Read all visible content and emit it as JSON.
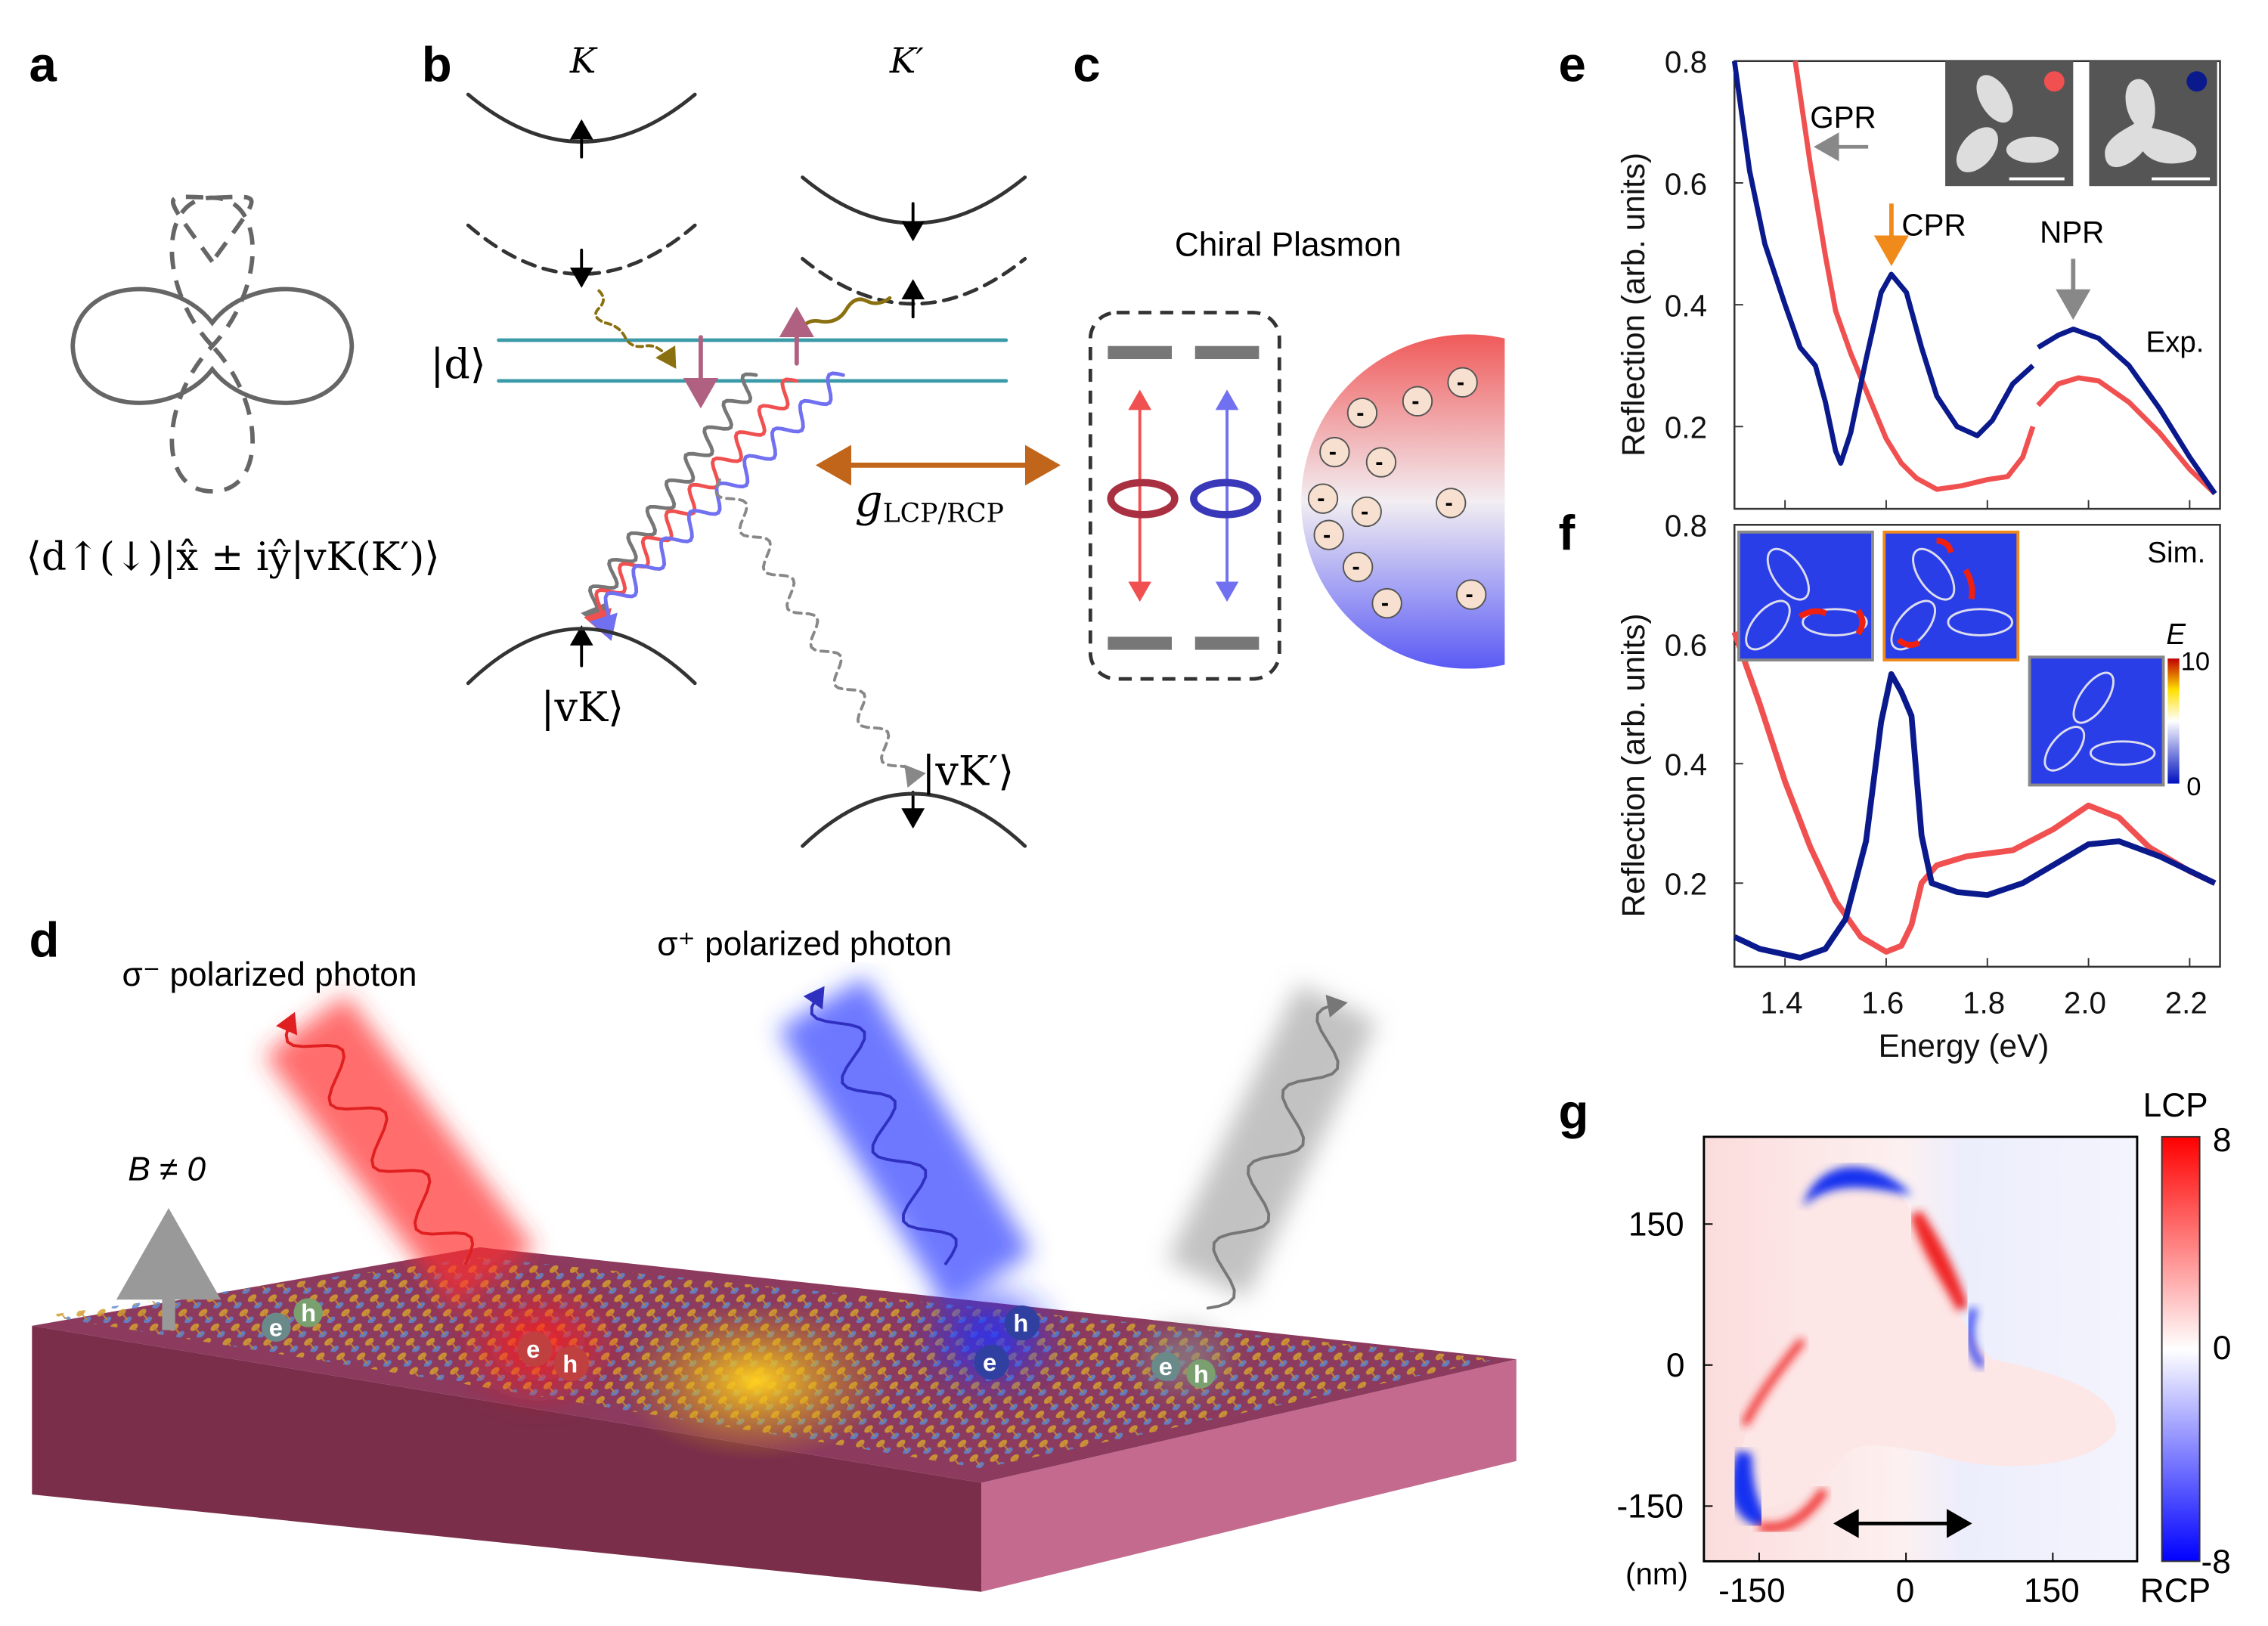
{
  "panel_labels": {
    "a": "a",
    "b": "b",
    "c": "c",
    "d": "d",
    "e": "e",
    "f": "f",
    "g": "g"
  },
  "panel_a": {
    "formula": "⟨d↑(↓)|x̂ ± iŷ|vK(K′)⟩"
  },
  "panel_b": {
    "valley_K": "K",
    "valley_Kp": "K′",
    "state_d": "|d⟩",
    "state_vK": "|vK⟩",
    "state_vKp": "|vK′⟩",
    "coupling_g": "g",
    "coupling_sub": "LCP/RCP"
  },
  "panel_c": {
    "title": "Chiral Plasmon",
    "charge": "-"
  },
  "panel_d": {
    "sigma_minus": "σ⁻ polarized photon",
    "sigma_plus": "σ⁺ polarized photon",
    "field": "B ≠ 0",
    "electron": "e",
    "hole": "h"
  },
  "colors": {
    "blue": "#0a1a8c",
    "red": "#f05050",
    "orange": "#f08a1a",
    "teal": "#3a9aa8",
    "coupling": "#c0651a"
  },
  "chart_data": [
    {
      "type": "line",
      "panel": "e",
      "xlabel": "Energy (eV)",
      "ylabel": "Reflection (arb. units)",
      "xlim": [
        1.3,
        2.26
      ],
      "ylim": [
        0.065,
        0.8
      ],
      "xticks": [
        1.4,
        1.6,
        1.8,
        2.0,
        2.2
      ],
      "yticks": [
        0.2,
        0.4,
        0.6,
        0.8
      ],
      "ytick_labels": [
        "0.2",
        "0.4",
        "0.6",
        "0.8"
      ],
      "annotations": {
        "gpr": "GPR",
        "cpr": "CPR",
        "npr": "NPR",
        "tag": "Exp."
      },
      "series": [
        {
          "name": "trimer-separated (red)",
          "color": "#f05050",
          "segments": [
            [
              [
                1.42,
                0.8
              ],
              [
                1.45,
                0.63
              ],
              [
                1.48,
                0.48
              ],
              [
                1.5,
                0.39
              ],
              [
                1.53,
                0.32
              ],
              [
                1.55,
                0.28
              ],
              [
                1.58,
                0.22
              ],
              [
                1.6,
                0.18
              ],
              [
                1.63,
                0.14
              ],
              [
                1.66,
                0.115
              ],
              [
                1.7,
                0.097
              ],
              [
                1.75,
                0.103
              ],
              [
                1.8,
                0.113
              ],
              [
                1.84,
                0.118
              ],
              [
                1.87,
                0.15
              ],
              [
                1.89,
                0.2
              ]
            ],
            [
              [
                1.9,
                0.235
              ],
              [
                1.94,
                0.27
              ],
              [
                1.98,
                0.28
              ],
              [
                2.02,
                0.275
              ],
              [
                2.08,
                0.24
              ],
              [
                2.14,
                0.19
              ],
              [
                2.2,
                0.13
              ],
              [
                2.25,
                0.09
              ]
            ]
          ]
        },
        {
          "name": "trimer-connected (blue)",
          "color": "#0a1a8c",
          "segments": [
            [
              [
                1.3,
                0.8
              ],
              [
                1.33,
                0.62
              ],
              [
                1.36,
                0.5
              ],
              [
                1.4,
                0.4
              ],
              [
                1.43,
                0.33
              ],
              [
                1.46,
                0.3
              ],
              [
                1.48,
                0.24
              ],
              [
                1.5,
                0.16
              ],
              [
                1.51,
                0.14
              ],
              [
                1.53,
                0.19
              ],
              [
                1.56,
                0.31
              ],
              [
                1.59,
                0.42
              ],
              [
                1.61,
                0.45
              ],
              [
                1.64,
                0.42
              ],
              [
                1.67,
                0.33
              ],
              [
                1.7,
                0.25
              ],
              [
                1.74,
                0.2
              ],
              [
                1.78,
                0.185
              ],
              [
                1.81,
                0.21
              ],
              [
                1.85,
                0.27
              ],
              [
                1.89,
                0.3
              ]
            ],
            [
              [
                1.9,
                0.33
              ],
              [
                1.94,
                0.35
              ],
              [
                1.97,
                0.36
              ],
              [
                2.02,
                0.345
              ],
              [
                2.08,
                0.3
              ],
              [
                2.14,
                0.23
              ],
              [
                2.2,
                0.15
              ],
              [
                2.25,
                0.09
              ]
            ]
          ]
        }
      ]
    },
    {
      "type": "line",
      "panel": "f",
      "xlabel": "Energy (eV)",
      "ylabel": "Reflection (arb. units)",
      "xlim": [
        1.3,
        2.26
      ],
      "ylim": [
        0.06,
        0.8
      ],
      "xticks": [
        1.4,
        1.6,
        1.8,
        2.0,
        2.2
      ],
      "xtick_labels": [
        "1.4",
        "1.6",
        "1.8",
        "2.0",
        "2.2"
      ],
      "yticks": [
        0.2,
        0.4,
        0.6,
        0.8
      ],
      "ytick_labels": [
        "0.2",
        "0.4",
        "0.6",
        "0.8"
      ],
      "annotations": {
        "tag": "Sim.",
        "cbar_label": "E",
        "cbar_max": "10",
        "cbar_min": "0"
      },
      "series": [
        {
          "name": "trimer-separated (red)",
          "color": "#f05050",
          "segments": [
            [
              [
                1.3,
                0.62
              ],
              [
                1.35,
                0.5
              ],
              [
                1.4,
                0.37
              ],
              [
                1.45,
                0.26
              ],
              [
                1.5,
                0.17
              ],
              [
                1.55,
                0.11
              ],
              [
                1.6,
                0.085
              ],
              [
                1.63,
                0.095
              ],
              [
                1.65,
                0.13
              ],
              [
                1.67,
                0.2
              ],
              [
                1.7,
                0.23
              ],
              [
                1.76,
                0.245
              ],
              [
                1.85,
                0.255
              ],
              [
                1.93,
                0.29
              ],
              [
                2.0,
                0.33
              ],
              [
                2.06,
                0.31
              ],
              [
                2.12,
                0.26
              ],
              [
                2.2,
                0.22
              ],
              [
                2.25,
                0.2
              ]
            ]
          ]
        },
        {
          "name": "trimer-connected (blue)",
          "color": "#0a1a8c",
          "segments": [
            [
              [
                1.3,
                0.11
              ],
              [
                1.35,
                0.09
              ],
              [
                1.43,
                0.075
              ],
              [
                1.48,
                0.09
              ],
              [
                1.52,
                0.14
              ],
              [
                1.56,
                0.27
              ],
              [
                1.59,
                0.47
              ],
              [
                1.61,
                0.55
              ],
              [
                1.63,
                0.52
              ],
              [
                1.65,
                0.48
              ],
              [
                1.67,
                0.28
              ],
              [
                1.69,
                0.2
              ],
              [
                1.74,
                0.185
              ],
              [
                1.8,
                0.18
              ],
              [
                1.87,
                0.2
              ],
              [
                1.95,
                0.24
              ],
              [
                2.0,
                0.265
              ],
              [
                2.06,
                0.27
              ],
              [
                2.14,
                0.245
              ],
              [
                2.25,
                0.2
              ]
            ]
          ]
        }
      ]
    },
    {
      "type": "heatmap",
      "panel": "g",
      "x_unit": "(nm)",
      "xticks": [
        -150,
        0,
        150
      ],
      "xtick_labels": [
        "-150",
        "0",
        "150"
      ],
      "yticks": [
        150,
        0,
        -150
      ],
      "ytick_labels": [
        "150",
        "0",
        "-150"
      ],
      "colorbar": {
        "max_label": "8",
        "mid_label": "0",
        "min_label": "-8",
        "top": "LCP",
        "bottom": "RCP",
        "range": [
          -8,
          8
        ]
      }
    }
  ]
}
